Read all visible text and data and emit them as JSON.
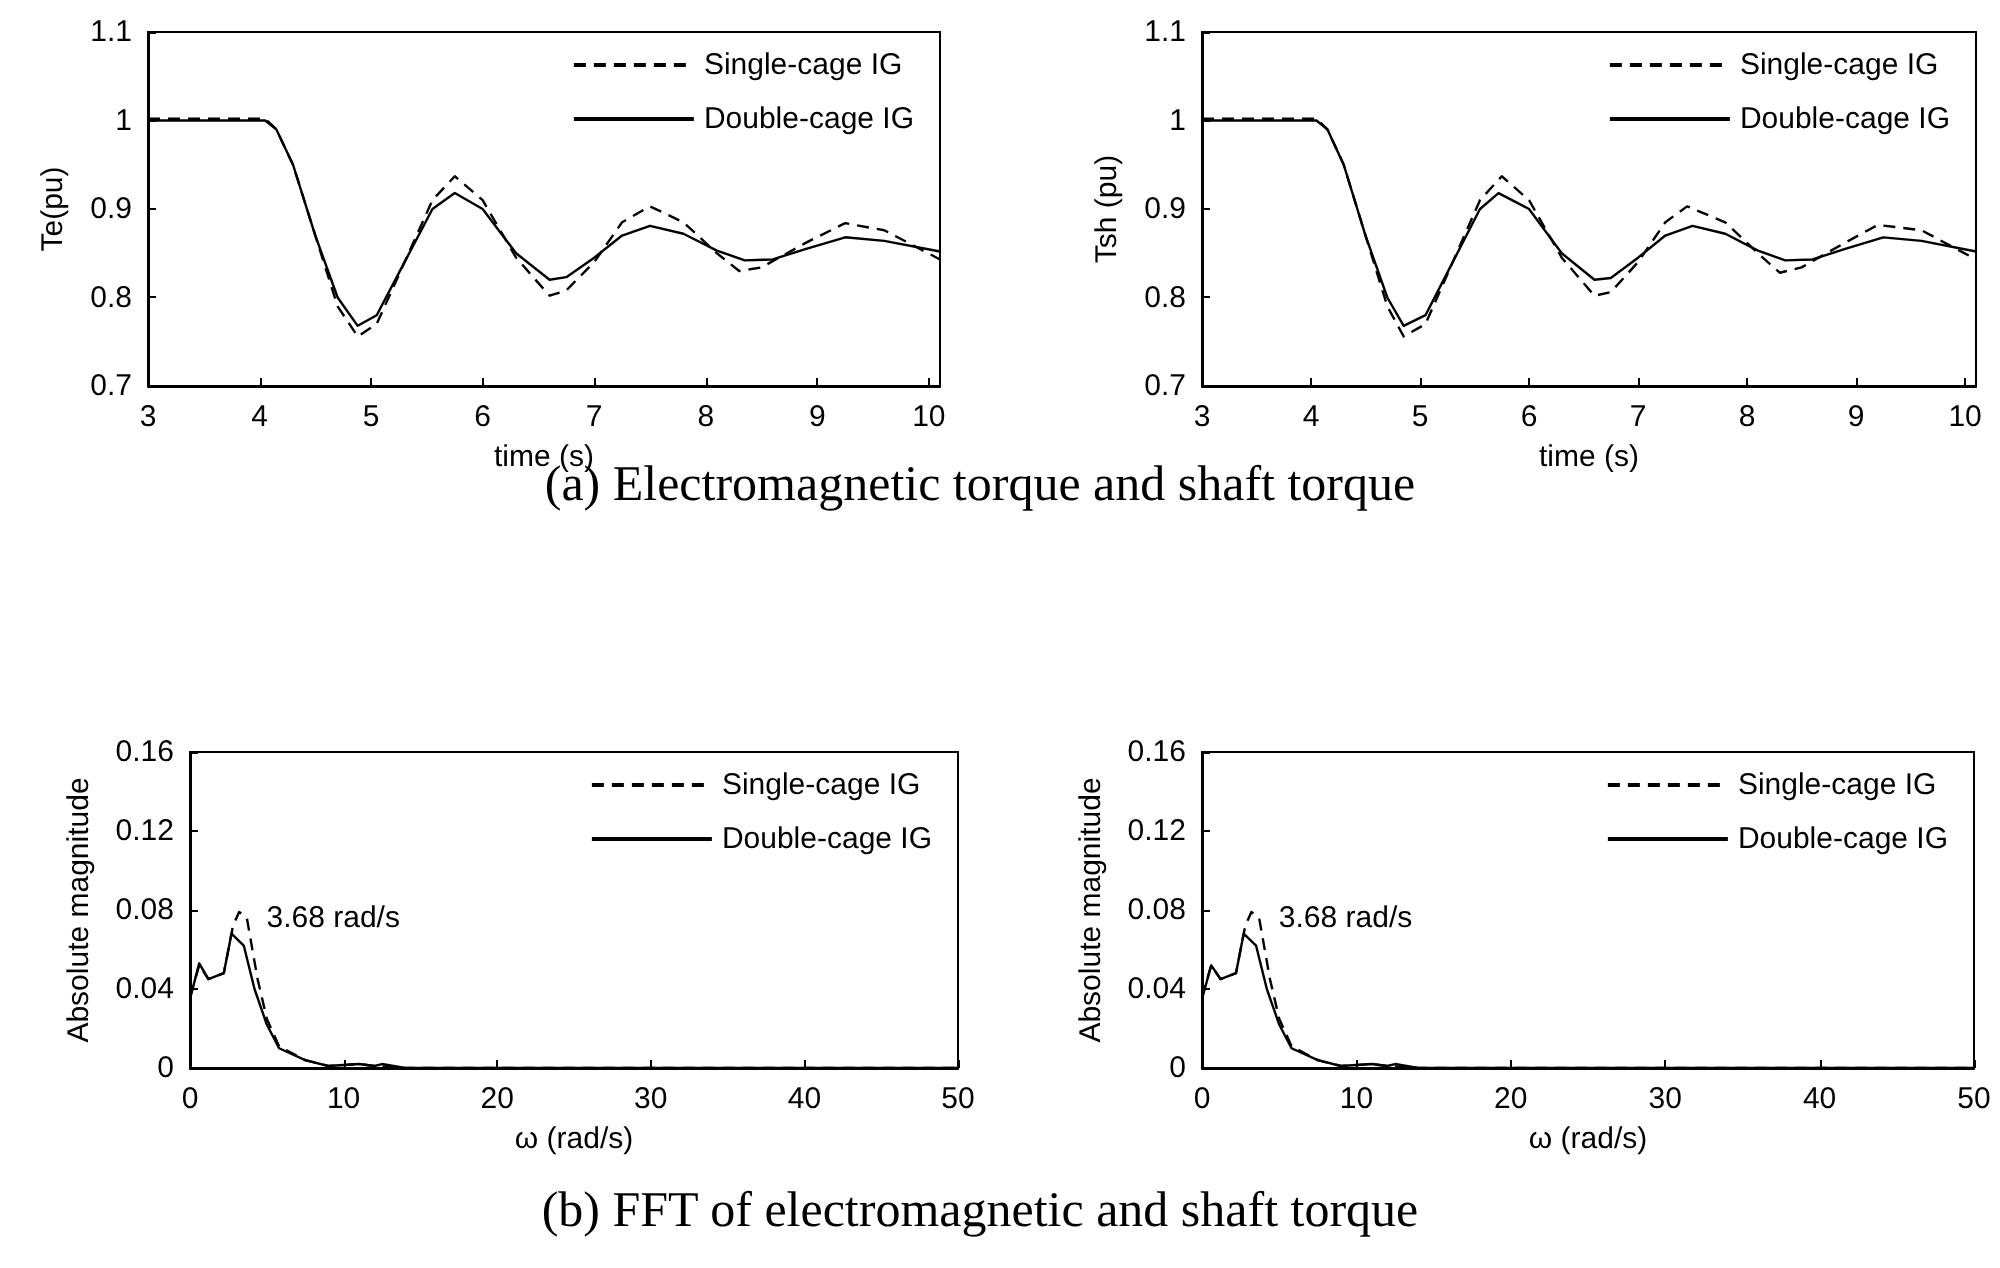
{
  "chart_data": [
    {
      "type": "line",
      "xlabel": "time (s)",
      "ylabel": "Te(pu)",
      "xlim": [
        3,
        10.1
      ],
      "xticks": [
        3,
        4,
        5,
        6,
        7,
        8,
        9,
        10
      ],
      "ylim": [
        0.7,
        1.1
      ],
      "yticks": [
        0.7,
        0.8,
        0.9,
        1,
        1.1
      ],
      "legend": "top right",
      "marker": "none",
      "grid": false,
      "annotations": [
        "(a)  Electromagnetic torque and shaft torque"
      ],
      "series": [
        {
          "name": "Single-cage IG",
          "color": "#000000",
          "line_style": "dashed",
          "x": [
            3,
            4.05,
            4.15,
            4.3,
            4.5,
            4.7,
            4.88,
            5.05,
            5.3,
            5.55,
            5.75,
            6.0,
            6.3,
            6.6,
            6.75,
            7.0,
            7.25,
            7.5,
            7.8,
            8.1,
            8.3,
            8.5,
            8.9,
            9.25,
            9.6,
            10.1
          ],
          "values": [
            1.002,
            1.002,
            0.99,
            0.95,
            0.87,
            0.79,
            0.756,
            0.77,
            0.84,
            0.91,
            0.937,
            0.91,
            0.845,
            0.802,
            0.808,
            0.84,
            0.885,
            0.903,
            0.885,
            0.85,
            0.83,
            0.834,
            0.862,
            0.884,
            0.876,
            0.843
          ]
        },
        {
          "name": "Double-cage IG",
          "color": "#000000",
          "line_style": "solid",
          "x": [
            3,
            4.05,
            4.15,
            4.3,
            4.5,
            4.7,
            4.88,
            5.05,
            5.3,
            5.55,
            5.75,
            6.0,
            6.3,
            6.6,
            6.75,
            7.0,
            7.25,
            7.5,
            7.8,
            8.1,
            8.35,
            8.6,
            8.9,
            9.25,
            9.6,
            10.1
          ],
          "values": [
            1,
            1,
            0.99,
            0.95,
            0.87,
            0.8,
            0.768,
            0.78,
            0.84,
            0.9,
            0.918,
            0.9,
            0.85,
            0.82,
            0.823,
            0.845,
            0.87,
            0.881,
            0.872,
            0.853,
            0.842,
            0.843,
            0.855,
            0.868,
            0.864,
            0.852
          ]
        }
      ]
    },
    {
      "type": "line",
      "xlabel": "time (s)",
      "ylabel": "Tsh (pu)",
      "xlim": [
        3,
        10.1
      ],
      "xticks": [
        3,
        4,
        5,
        6,
        7,
        8,
        9,
        10
      ],
      "ylim": [
        0.7,
        1.1
      ],
      "yticks": [
        0.7,
        0.8,
        0.9,
        1,
        1.1
      ],
      "legend": "top right",
      "marker": "none",
      "grid": false,
      "series": [
        {
          "name": "Single-cage IG",
          "color": "#000000",
          "line_style": "dashed",
          "x": [
            3,
            4.05,
            4.15,
            4.3,
            4.5,
            4.7,
            4.85,
            5.05,
            5.3,
            5.55,
            5.75,
            6.0,
            6.3,
            6.6,
            6.75,
            7.0,
            7.25,
            7.45,
            7.8,
            8.1,
            8.3,
            8.5,
            8.9,
            9.2,
            9.6,
            10.1
          ],
          "values": [
            1.002,
            1.002,
            0.99,
            0.95,
            0.87,
            0.79,
            0.756,
            0.77,
            0.84,
            0.91,
            0.937,
            0.91,
            0.845,
            0.802,
            0.806,
            0.84,
            0.885,
            0.903,
            0.885,
            0.85,
            0.828,
            0.834,
            0.862,
            0.882,
            0.876,
            0.843
          ]
        },
        {
          "name": "Double-cage IG",
          "color": "#000000",
          "line_style": "solid",
          "x": [
            3,
            4.05,
            4.15,
            4.3,
            4.5,
            4.7,
            4.85,
            5.05,
            5.3,
            5.55,
            5.72,
            6.0,
            6.3,
            6.6,
            6.75,
            7.0,
            7.25,
            7.5,
            7.8,
            8.1,
            8.35,
            8.6,
            8.9,
            9.25,
            9.6,
            10.1
          ],
          "values": [
            1,
            1,
            0.99,
            0.95,
            0.87,
            0.8,
            0.768,
            0.78,
            0.84,
            0.9,
            0.918,
            0.9,
            0.85,
            0.82,
            0.822,
            0.845,
            0.87,
            0.881,
            0.872,
            0.853,
            0.842,
            0.843,
            0.855,
            0.868,
            0.864,
            0.852
          ]
        }
      ]
    },
    {
      "type": "line",
      "xlabel": "ω (rad/s)",
      "ylabel": "Absolute magnitude",
      "xlim": [
        0,
        50
      ],
      "xticks": [
        0,
        10,
        20,
        30,
        40,
        50
      ],
      "ylim": [
        0,
        0.16
      ],
      "yticks": [
        0,
        0.04,
        0.08,
        0.12,
        0.16
      ],
      "legend": "top right",
      "marker": "none",
      "grid": false,
      "annotations": [
        "(b)  FFT of electromagnetic and shaft torque",
        {
          "text": "3.68 rad/s",
          "x": 3.68,
          "y": 0.078
        }
      ],
      "series": [
        {
          "name": "Single-cage IG",
          "color": "#000000",
          "line_style": "dashed",
          "x": [
            0,
            0.6,
            1.2,
            2.2,
            2.8,
            3.2,
            3.7,
            4.4,
            5,
            5.8,
            7.5,
            9,
            11,
            12,
            14,
            50
          ],
          "values": [
            0.036,
            0.052,
            0.045,
            0.048,
            0.072,
            0.079,
            0.076,
            0.045,
            0.025,
            0.011,
            0.004,
            0.001,
            0.002,
            0.001,
            0,
            0
          ]
        },
        {
          "name": "Double-cage IG",
          "color": "#000000",
          "line_style": "solid",
          "x": [
            0,
            0.6,
            1.2,
            2.2,
            2.7,
            3.5,
            4.2,
            5,
            5.8,
            7.5,
            9,
            11,
            12,
            12.5,
            14,
            50
          ],
          "values": [
            0.035,
            0.053,
            0.045,
            0.048,
            0.068,
            0.062,
            0.04,
            0.022,
            0.01,
            0.004,
            0.001,
            0.002,
            0.001,
            0.002,
            0,
            0
          ]
        }
      ]
    },
    {
      "type": "line",
      "xlabel": "ω (rad/s)",
      "ylabel": "Absolute magnitude",
      "xlim": [
        0,
        50
      ],
      "xticks": [
        0,
        10,
        20,
        30,
        40,
        50
      ],
      "ylim": [
        0,
        0.16
      ],
      "yticks": [
        0,
        0.04,
        0.08,
        0.12,
        0.16
      ],
      "legend": "top right",
      "marker": "none",
      "grid": false,
      "annotations": [
        {
          "text": "3.68 rad/s",
          "x": 3.68,
          "y": 0.078
        }
      ],
      "series": [
        {
          "name": "Single-cage IG",
          "color": "#000000",
          "line_style": "dashed",
          "x": [
            0,
            0.6,
            1.2,
            2.2,
            2.8,
            3.2,
            3.7,
            4.4,
            5,
            5.8,
            7.5,
            9,
            11,
            12,
            14,
            50
          ],
          "values": [
            0.036,
            0.052,
            0.045,
            0.048,
            0.072,
            0.079,
            0.076,
            0.045,
            0.025,
            0.011,
            0.004,
            0.001,
            0.002,
            0.001,
            0,
            0
          ]
        },
        {
          "name": "Double-cage IG",
          "color": "#000000",
          "line_style": "solid",
          "x": [
            0,
            0.6,
            1.2,
            2.2,
            2.7,
            3.5,
            4.2,
            5,
            5.8,
            7.5,
            9,
            11,
            12,
            12.5,
            14,
            50
          ],
          "values": [
            0.035,
            0.052,
            0.045,
            0.048,
            0.068,
            0.062,
            0.04,
            0.022,
            0.01,
            0.004,
            0.001,
            0.002,
            0.001,
            0.002,
            0,
            0
          ]
        }
      ]
    }
  ]
}
